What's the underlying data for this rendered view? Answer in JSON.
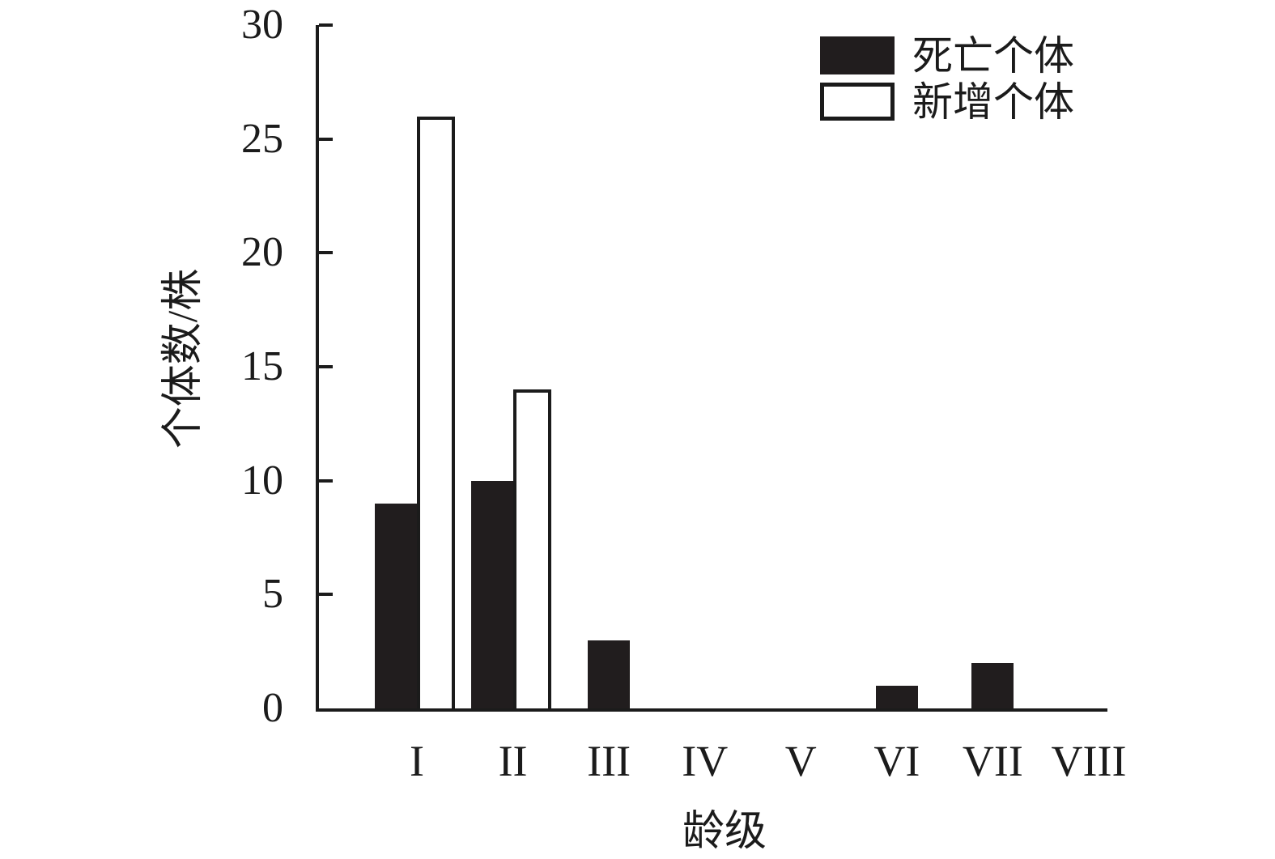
{
  "chart_data": {
    "type": "bar",
    "title": "",
    "categories": [
      "I",
      "II",
      "III",
      "IV",
      "V",
      "VI",
      "VII",
      "VIII"
    ],
    "series": [
      {
        "name": "死亡个体",
        "style": "filled",
        "color": "#211d1e",
        "values": [
          9,
          10,
          3,
          0,
          0,
          1,
          2,
          0
        ]
      },
      {
        "name": "新增个体",
        "style": "outlined",
        "color": "#ffffff",
        "values": [
          26,
          14,
          0,
          0,
          0,
          0,
          0,
          0
        ]
      }
    ],
    "xlabel": "龄级",
    "ylabel": "个体数/株",
    "ylim": [
      0,
      30
    ],
    "yticks": [
      0,
      5,
      10,
      15,
      20,
      25,
      30
    ],
    "grid": false,
    "legend_position": "top-right"
  },
  "colors": {
    "axis": "#1b1b1b",
    "bar_fill": "#211d1e",
    "background": "#ffffff"
  }
}
